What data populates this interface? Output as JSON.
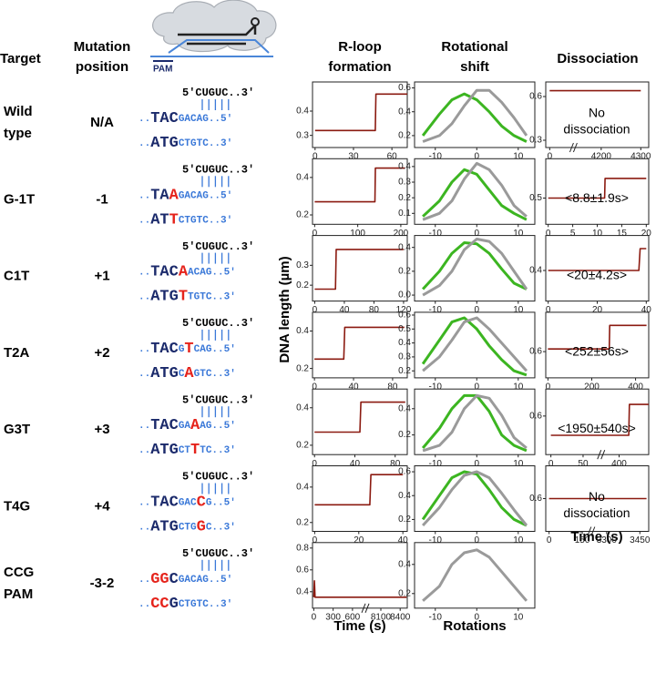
{
  "header": {
    "target": "Target",
    "mutation": [
      "Mutation",
      "position"
    ],
    "rloop": [
      "R-loop",
      "formation"
    ],
    "rotation": [
      "Rotational",
      "shift"
    ],
    "dissociation": "Dissociation",
    "pam": "PAM"
  },
  "y_label": "DNA length (µm)",
  "x_labels": {
    "rloop": "Time (s)",
    "rotation": "Rotations",
    "dissociation": "Time (s)"
  },
  "colors": {
    "trace": "#8b1a10",
    "blue": "#3a78d8",
    "navy": "#1b2a6b",
    "red": "#e5231b"
  },
  "rows": [
    {
      "target": [
        "Wild",
        "type"
      ],
      "position": "N/A",
      "seq": {
        "top": "5′CUGUC..3′",
        "mid": [
          [
            "..",
            "#3a78d8"
          ],
          [
            "TAC",
            "#1b2a6b"
          ],
          [
            "GACAG..5′",
            "#3a78d8"
          ]
        ],
        "bot": [
          [
            "..",
            "#3a78d8"
          ],
          [
            "ATG",
            "#1b2a6b"
          ],
          [
            "CTGTC..3′",
            "#3a78d8"
          ]
        ]
      },
      "rloop": {
        "xlim": [
          -2,
          72
        ],
        "xticks": [
          0,
          30,
          60
        ],
        "ylim": [
          0.25,
          0.52
        ],
        "yticks": [
          0.3,
          0.4
        ],
        "x": [
          0,
          47,
          47.5,
          72
        ],
        "y": [
          0.32,
          0.32,
          0.47,
          0.47
        ]
      },
      "rotation": {
        "xlim": [
          -15,
          14
        ],
        "xticks": [
          -10,
          0,
          10
        ],
        "ylim": [
          0.1,
          0.65
        ],
        "yticks": [
          0.2,
          0.4,
          0.6
        ],
        "x": [
          -13,
          -9,
          -6,
          -3,
          0,
          3,
          6,
          9,
          12
        ],
        "curves": [
          {
            "color": "#3cb521",
            "values": [
              0.2,
              0.38,
              0.5,
              0.55,
              0.5,
              0.4,
              0.28,
              0.2,
              0.15
            ]
          },
          {
            "color": "#9a9a9a",
            "values": [
              0.15,
              0.2,
              0.3,
              0.45,
              0.58,
              0.58,
              0.48,
              0.35,
              0.2
            ]
          }
        ]
      },
      "dissociation": {
        "xlim": [
          -10,
          4320
        ],
        "xbreak": [
          60,
          4130
        ],
        "xticks": [
          0,
          4200,
          4300
        ],
        "ylim": [
          0.25,
          0.7
        ],
        "yticks": [
          0.3,
          0.6
        ],
        "x": [
          0,
          60,
          4130,
          4300
        ],
        "y": [
          0.64,
          0.64,
          0.64,
          0.64
        ],
        "note": [
          "No",
          "dissociation"
        ]
      }
    },
    {
      "target": [
        "G-1T"
      ],
      "position": "-1",
      "seq": {
        "top": "5′CUGUC..3′",
        "mid": [
          [
            "..",
            "#3a78d8"
          ],
          [
            "TA",
            "#1b2a6b"
          ],
          [
            "A",
            "#e5231b"
          ],
          [
            "GACAG..5′",
            "#3a78d8"
          ]
        ],
        "bot": [
          [
            "..",
            "#3a78d8"
          ],
          [
            "AT",
            "#1b2a6b"
          ],
          [
            "T",
            "#e5231b"
          ],
          [
            "CTGTC..3′",
            "#3a78d8"
          ]
        ]
      },
      "rloop": {
        "xlim": [
          -5,
          215
        ],
        "xticks": [
          0,
          100,
          200
        ],
        "ylim": [
          0.15,
          0.5
        ],
        "yticks": [
          0.2,
          0.4
        ],
        "x": [
          0,
          140,
          141,
          210
        ],
        "y": [
          0.27,
          0.27,
          0.45,
          0.45
        ]
      },
      "rotation": {
        "xlim": [
          -15,
          14
        ],
        "xticks": [
          -10,
          0,
          10
        ],
        "ylim": [
          0.03,
          0.45
        ],
        "yticks": [
          0.1,
          0.2,
          0.3,
          0.4
        ],
        "x": [
          -13,
          -9,
          -6,
          -3,
          0,
          3,
          6,
          9,
          12
        ],
        "curves": [
          {
            "color": "#3cb521",
            "values": [
              0.08,
              0.18,
              0.3,
              0.38,
              0.35,
              0.25,
              0.15,
              0.1,
              0.06
            ]
          },
          {
            "color": "#9a9a9a",
            "values": [
              0.06,
              0.1,
              0.18,
              0.32,
              0.42,
              0.38,
              0.28,
              0.15,
              0.08
            ]
          }
        ]
      },
      "dissociation": {
        "xlim": [
          -0.5,
          20.5
        ],
        "xticks": [
          0,
          5,
          10,
          15,
          20
        ],
        "ylim": [
          0.46,
          0.56
        ],
        "yticks": [
          0.5
        ],
        "x": [
          0,
          11.5,
          11.6,
          20
        ],
        "y": [
          0.5,
          0.5,
          0.53,
          0.53
        ],
        "note": [
          "<8.8±1.9s>"
        ]
      }
    },
    {
      "target": [
        "C1T"
      ],
      "position": "+1",
      "seq": {
        "top": "5′CUGUC..3′",
        "mid": [
          [
            "..",
            "#3a78d8"
          ],
          [
            "TAC",
            "#1b2a6b"
          ],
          [
            "A",
            "#e5231b"
          ],
          [
            "ACAG..5′",
            "#3a78d8"
          ]
        ],
        "bot": [
          [
            "..",
            "#3a78d8"
          ],
          [
            "ATG",
            "#1b2a6b"
          ],
          [
            "T",
            "#e5231b"
          ],
          [
            "TGTC..3′",
            "#3a78d8"
          ]
        ]
      },
      "rloop": {
        "xlim": [
          -3,
          125
        ],
        "xticks": [
          0,
          40,
          80,
          120
        ],
        "ylim": [
          0.12,
          0.45
        ],
        "yticks": [
          0.2,
          0.3
        ],
        "x": [
          0,
          28,
          29,
          120
        ],
        "y": [
          0.18,
          0.18,
          0.38,
          0.38
        ]
      },
      "rotation": {
        "xlim": [
          -15,
          14
        ],
        "xticks": [
          -10,
          0,
          10
        ],
        "ylim": [
          -0.05,
          0.5
        ],
        "yticks": [
          {
            "value": 0,
            "label": "0.0"
          },
          0.2,
          0.4
        ],
        "x": [
          -13,
          -9,
          -6,
          -3,
          0,
          3,
          6,
          9,
          12
        ],
        "curves": [
          {
            "color": "#3cb521",
            "values": [
              0.05,
              0.2,
              0.35,
              0.44,
              0.43,
              0.35,
              0.22,
              0.1,
              0.05
            ]
          },
          {
            "color": "#9a9a9a",
            "values": [
              0,
              0.08,
              0.2,
              0.38,
              0.47,
              0.45,
              0.35,
              0.2,
              0.05
            ]
          }
        ]
      },
      "dissociation": {
        "xlim": [
          -1,
          41
        ],
        "xticks": [
          0,
          20,
          40
        ],
        "ylim": [
          0.33,
          0.48
        ],
        "yticks": [
          0.4
        ],
        "x": [
          0,
          37,
          37.5,
          40
        ],
        "y": [
          0.4,
          0.4,
          0.45,
          0.45
        ],
        "note": [
          "<20±4.2s>"
        ]
      }
    },
    {
      "target": [
        "T2A"
      ],
      "position": "+2",
      "seq": {
        "top": "5′CUGUC..3′",
        "mid": [
          [
            "..",
            "#3a78d8"
          ],
          [
            "TAC",
            "#1b2a6b"
          ],
          [
            "G",
            "#3a78d8"
          ],
          [
            "T",
            "#e5231b"
          ],
          [
            "CAG..5′",
            "#3a78d8"
          ]
        ],
        "bot": [
          [
            "..",
            "#3a78d8"
          ],
          [
            "ATG",
            "#1b2a6b"
          ],
          [
            "C",
            "#3a78d8"
          ],
          [
            "A",
            "#e5231b"
          ],
          [
            "GTC..3′",
            "#3a78d8"
          ]
        ]
      },
      "rloop": {
        "xlim": [
          -2,
          95
        ],
        "xticks": [
          0,
          40,
          80
        ],
        "ylim": [
          0.15,
          0.5
        ],
        "yticks": [
          0.2,
          0.4
        ],
        "x": [
          0,
          30,
          31,
          92
        ],
        "y": [
          0.25,
          0.25,
          0.42,
          0.42
        ]
      },
      "rotation": {
        "xlim": [
          -15,
          14
        ],
        "xticks": [
          -10,
          0,
          10
        ],
        "ylim": [
          0.15,
          0.62
        ],
        "yticks": [
          0.2,
          0.3,
          0.4,
          0.5,
          0.6
        ],
        "x": [
          -13,
          -9,
          -6,
          -3,
          0,
          3,
          6,
          9,
          12
        ],
        "curves": [
          {
            "color": "#3cb521",
            "values": [
              0.25,
              0.42,
              0.55,
              0.58,
              0.5,
              0.38,
              0.28,
              0.2,
              0.17
            ]
          },
          {
            "color": "#9a9a9a",
            "values": [
              0.2,
              0.3,
              0.42,
              0.55,
              0.58,
              0.5,
              0.4,
              0.3,
              0.2
            ]
          }
        ]
      },
      "dissociation": {
        "xlim": [
          -10,
          460
        ],
        "xticks": [
          0,
          200,
          400
        ],
        "ylim": [
          0.5,
          0.75
        ],
        "yticks": [
          0.6
        ],
        "x": [
          0,
          280,
          282,
          450
        ],
        "y": [
          0.61,
          0.61,
          0.7,
          0.7
        ],
        "note": [
          "<252±56s>"
        ]
      }
    },
    {
      "target": [
        "G3T"
      ],
      "position": "+3",
      "seq": {
        "top": "5′CUGUC..3′",
        "mid": [
          [
            "..",
            "#3a78d8"
          ],
          [
            "TAC",
            "#1b2a6b"
          ],
          [
            "GA",
            "#3a78d8"
          ],
          [
            "A",
            "#e5231b"
          ],
          [
            "AG..5′",
            "#3a78d8"
          ]
        ],
        "bot": [
          [
            "..",
            "#3a78d8"
          ],
          [
            "ATG",
            "#1b2a6b"
          ],
          [
            "CT",
            "#3a78d8"
          ],
          [
            "T",
            "#e5231b"
          ],
          [
            "TC..3′",
            "#3a78d8"
          ]
        ]
      },
      "rloop": {
        "xlim": [
          -2,
          92
        ],
        "xticks": [
          0,
          40,
          80
        ],
        "ylim": [
          0.15,
          0.5
        ],
        "yticks": [
          0.2,
          0.4
        ],
        "x": [
          0,
          45,
          46,
          90
        ],
        "y": [
          0.27,
          0.27,
          0.43,
          0.43
        ]
      },
      "rotation": {
        "xlim": [
          -15,
          14
        ],
        "xticks": [
          -10,
          0,
          10
        ],
        "ylim": [
          0.05,
          0.55
        ],
        "yticks": [
          0.2,
          0.4
        ],
        "x": [
          -13,
          -9,
          -6,
          -3,
          0,
          3,
          6,
          9,
          12
        ],
        "curves": [
          {
            "color": "#3cb521",
            "values": [
              0.1,
              0.25,
              0.4,
              0.5,
              0.5,
              0.38,
              0.2,
              0.12,
              0.08
            ]
          },
          {
            "color": "#9a9a9a",
            "values": [
              0.08,
              0.12,
              0.22,
              0.4,
              0.5,
              0.48,
              0.35,
              0.18,
              0.1
            ]
          }
        ]
      },
      "dissociation": {
        "xlim": [
          -8,
          446
        ],
        "xbreak": [
          78,
          372
        ],
        "xticks": [
          0,
          50,
          400
        ],
        "ylim": [
          0.5,
          0.67
        ],
        "yticks": [
          0.6
        ],
        "x": [
          0,
          78,
          372,
          415,
          416,
          446
        ],
        "y": [
          0.55,
          0.55,
          0.55,
          0.55,
          0.63,
          0.63
        ],
        "note": [
          "<1950±540s>"
        ]
      }
    },
    {
      "target": [
        "T4G"
      ],
      "position": "+4",
      "seq": {
        "top": "5′CUGUC..3′",
        "mid": [
          [
            "..",
            "#3a78d8"
          ],
          [
            "TAC",
            "#1b2a6b"
          ],
          [
            "GAC",
            "#3a78d8"
          ],
          [
            "C",
            "#e5231b"
          ],
          [
            "G..5′",
            "#3a78d8"
          ]
        ],
        "bot": [
          [
            "..",
            "#3a78d8"
          ],
          [
            "ATG",
            "#1b2a6b"
          ],
          [
            "CTG",
            "#3a78d8"
          ],
          [
            "G",
            "#e5231b"
          ],
          [
            "C..3′",
            "#3a78d8"
          ]
        ]
      },
      "rloop": {
        "xlim": [
          -1,
          42
        ],
        "xticks": [
          0,
          20,
          40
        ],
        "ylim": [
          0.15,
          0.52
        ],
        "yticks": [
          0.2,
          0.4
        ],
        "x": [
          0,
          25,
          25.5,
          40
        ],
        "y": [
          0.3,
          0.3,
          0.47,
          0.47
        ]
      },
      "rotation": {
        "xlim": [
          -15,
          14
        ],
        "xticks": [
          -10,
          0,
          10
        ],
        "ylim": [
          0.1,
          0.65
        ],
        "yticks": [
          0.2,
          0.4,
          0.6
        ],
        "x": [
          -13,
          -9,
          -6,
          -3,
          0,
          3,
          6,
          9,
          12
        ],
        "curves": [
          {
            "color": "#3cb521",
            "values": [
              0.2,
              0.4,
              0.55,
              0.6,
              0.58,
              0.45,
              0.3,
              0.2,
              0.15
            ]
          },
          {
            "color": "#9a9a9a",
            "values": [
              0.15,
              0.3,
              0.45,
              0.57,
              0.6,
              0.55,
              0.42,
              0.28,
              0.15
            ]
          }
        ]
      },
      "dissociation": {
        "xlim": [
          -15,
          3490
        ],
        "xbreak": [
          190,
          3230
        ],
        "xticks": [
          0,
          150,
          3300,
          3450
        ],
        "ylim": [
          0.5,
          0.7
        ],
        "yticks": [
          0.6
        ],
        "x": [
          0,
          190,
          3230,
          3480
        ],
        "y": [
          0.6,
          0.6,
          0.6,
          0.6
        ],
        "note": [
          "No",
          "dissociation"
        ]
      }
    },
    {
      "target": [
        "CCG",
        "PAM"
      ],
      "position": "-3-2",
      "seq": {
        "top": "5′CUGUC..3′",
        "mid": [
          [
            "..",
            "#3a78d8"
          ],
          [
            "GG",
            "#e5231b"
          ],
          [
            "C",
            "#1b2a6b"
          ],
          [
            "GACAG..5′",
            "#3a78d8"
          ]
        ],
        "bot": [
          [
            "..",
            "#3a78d8"
          ],
          [
            "CC",
            "#e5231b"
          ],
          [
            "G",
            "#1b2a6b"
          ],
          [
            "CTGTC..3′",
            "#3a78d8"
          ]
        ]
      },
      "rloop": {
        "xlim": [
          -20,
          8510
        ],
        "xbreak": [
          800,
          7860
        ],
        "xticks": [
          0,
          300,
          600,
          8100,
          8400
        ],
        "ylim": [
          0.25,
          0.85
        ],
        "yticks": [
          0.4,
          0.6,
          0.8
        ],
        "x": [
          0,
          10,
          20,
          800,
          7860,
          8500
        ],
        "y": [
          0.35,
          0.5,
          0.35,
          0.35,
          0.35,
          0.35
        ]
      },
      "rotation": {
        "xlim": [
          -15,
          14
        ],
        "xticks": [
          -10,
          0,
          10
        ],
        "ylim": [
          0.1,
          0.55
        ],
        "yticks": [
          0.2,
          0.4
        ],
        "x": [
          -13,
          -9,
          -6,
          -3,
          0,
          3,
          6,
          9,
          12
        ],
        "curves": [
          {
            "color": "#9a9a9a",
            "values": [
              0.15,
              0.25,
              0.4,
              0.48,
              0.5,
              0.45,
              0.35,
              0.25,
              0.15
            ]
          }
        ]
      }
    }
  ]
}
